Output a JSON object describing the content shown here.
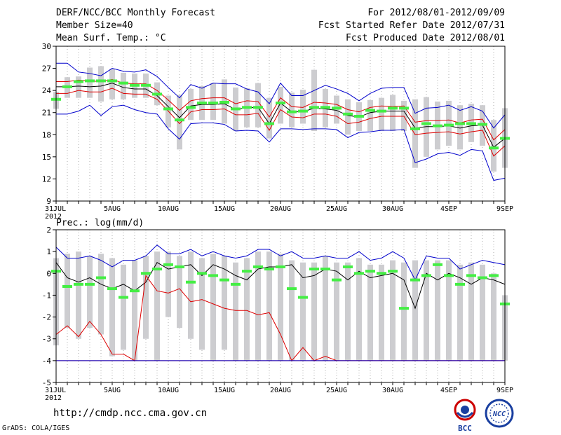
{
  "header": {
    "title": "DERF/NCC/BCC Monthly Forecast",
    "member_size": "Member Size=40",
    "variable": "Mean Surf. Temp.: °C",
    "period": "For 2012/08/01-2012/09/09",
    "fcst_started": "Fcst Started Refer Date 2012/07/31",
    "fcst_produced": "Fcst Produced Date 2012/08/01"
  },
  "footer": {
    "url": "http://cmdp.ncc.cma.gov.cn",
    "grads": "GrADS: COLA/IGES",
    "logo_left": "BCC",
    "logo_right": "NCC"
  },
  "colors": {
    "box": "#cdcdd0",
    "observed": "#44ee44",
    "max_line": "#0000cc",
    "spread_line": "#dd0000",
    "mean_line": "#000000"
  },
  "chart_data": [
    {
      "type": "line",
      "title": "Mean Surf. Temp.: °C",
      "ylabel": "",
      "ylim": [
        9,
        30
      ],
      "yticks": [
        9,
        12,
        15,
        18,
        21,
        24,
        27,
        30
      ],
      "xtick_labels": [
        "31JUL\n2012",
        "5AUG",
        "10AUG",
        "15AUG",
        "20AUG",
        "25AUG",
        "30AUG",
        "4SEP",
        "9SEP"
      ],
      "xtick_days": [
        0,
        5,
        10,
        15,
        20,
        25,
        30,
        35,
        40
      ],
      "series": [
        {
          "name": "max",
          "color": "#0000cc",
          "values": [
            27.7,
            27.7,
            26.5,
            26.3,
            26.0,
            27.0,
            26.6,
            26.5,
            26.8,
            25.9,
            24.4,
            23.0,
            24.8,
            24.3,
            25.0,
            24.9,
            24.9,
            24.2,
            23.8,
            22.2,
            25.0,
            23.3,
            23.3,
            24.0,
            24.7,
            24.2,
            23.6,
            22.6,
            23.6,
            24.3,
            24.4,
            24.4,
            20.9,
            21.6,
            21.7,
            22.0,
            21.3,
            21.8,
            21.2,
            18.9,
            20.7
          ]
        },
        {
          "name": "upper",
          "color": "#dd0000",
          "values": [
            25.2,
            25.2,
            25.4,
            25.3,
            25.2,
            25.5,
            25.0,
            24.9,
            24.9,
            24.0,
            22.7,
            21.3,
            22.6,
            22.9,
            23.0,
            23.0,
            22.2,
            22.6,
            22.5,
            20.4,
            23.0,
            21.8,
            21.7,
            22.4,
            22.3,
            22.1,
            21.4,
            21.1,
            21.7,
            21.9,
            21.8,
            21.9,
            19.7,
            19.9,
            19.9,
            20.0,
            19.6,
            20.0,
            20.1,
            17.3,
            18.7
          ]
        },
        {
          "name": "mean",
          "color": "#000000",
          "values": [
            24.5,
            24.5,
            24.6,
            24.5,
            24.6,
            25.0,
            24.4,
            24.2,
            24.2,
            23.3,
            21.8,
            20.3,
            21.9,
            22.1,
            22.1,
            22.2,
            21.4,
            21.7,
            21.7,
            19.5,
            22.3,
            21.1,
            21.1,
            21.6,
            21.5,
            21.3,
            20.6,
            20.4,
            21.0,
            21.2,
            21.2,
            21.2,
            18.9,
            19.1,
            19.1,
            19.2,
            18.9,
            19.2,
            19.3,
            16.3,
            17.5
          ]
        },
        {
          "name": "lower",
          "color": "#dd0000",
          "values": [
            23.6,
            23.6,
            24.0,
            23.8,
            23.8,
            24.3,
            23.6,
            23.5,
            23.5,
            22.8,
            21.2,
            19.5,
            21.1,
            21.4,
            21.4,
            21.5,
            20.7,
            20.7,
            20.9,
            18.6,
            21.4,
            20.4,
            20.3,
            20.8,
            20.8,
            20.5,
            19.5,
            19.7,
            20.2,
            20.5,
            20.5,
            20.5,
            18.0,
            18.2,
            18.3,
            18.4,
            18.1,
            18.4,
            18.6,
            15.1,
            16.5
          ]
        },
        {
          "name": "min",
          "color": "#0000cc",
          "values": [
            20.8,
            20.8,
            21.2,
            22.0,
            20.6,
            21.8,
            22.0,
            21.4,
            21.0,
            20.8,
            18.8,
            17.4,
            19.5,
            19.6,
            19.6,
            19.4,
            18.5,
            18.6,
            18.5,
            17.0,
            18.8,
            18.8,
            18.7,
            18.8,
            18.8,
            18.7,
            17.6,
            18.3,
            18.4,
            18.6,
            18.6,
            18.7,
            14.2,
            14.7,
            15.4,
            15.6,
            15.2,
            16.0,
            15.8,
            11.8,
            12.1
          ]
        }
      ],
      "box_high": [
        23.8,
        25.8,
        25.9,
        27.1,
        27.3,
        26.9,
        26.4,
        26.3,
        26.3,
        25.1,
        23.3,
        23.4,
        24.2,
        24.6,
        25.0,
        25.5,
        24.4,
        24.3,
        25.0,
        23.0,
        24.5,
        23.7,
        24.1,
        26.8,
        24.2,
        23.3,
        22.8,
        22.4,
        22.7,
        23.0,
        23.4,
        22.6,
        22.8,
        23.1,
        22.5,
        22.6,
        22.0,
        22.2,
        22.0,
        20.0,
        21.6
      ],
      "box_low": [
        21.5,
        23.0,
        23.0,
        23.0,
        22.5,
        22.8,
        22.8,
        23.0,
        23.0,
        22.0,
        19.0,
        16.0,
        20.0,
        20.0,
        20.0,
        19.5,
        18.5,
        19.0,
        19.0,
        17.5,
        19.5,
        19.0,
        19.5,
        18.5,
        19.0,
        19.5,
        18.0,
        18.5,
        18.5,
        18.5,
        18.5,
        18.5,
        13.5,
        15.0,
        16.0,
        16.5,
        16.0,
        17.0,
        16.5,
        13.0,
        13.5
      ],
      "observed": [
        22.8,
        24.5,
        25.2,
        25.3,
        25.3,
        25.3,
        25.0,
        24.7,
        24.7,
        23.5,
        21.5,
        20.0,
        21.7,
        22.3,
        22.3,
        22.4,
        21.5,
        21.7,
        21.7,
        19.5,
        22.3,
        21.1,
        21.2,
        21.7,
        21.7,
        21.6,
        20.8,
        20.5,
        21.3,
        21.2,
        21.6,
        21.6,
        18.8,
        19.5,
        19.2,
        19.3,
        19.5,
        19.5,
        19.4,
        16.2,
        17.5
      ]
    },
    {
      "type": "line",
      "title": "Prec.: log(mm/d)",
      "ylim": [
        -5,
        2
      ],
      "yticks": [
        -5,
        -4,
        -3,
        -2,
        -1,
        0,
        1,
        2
      ],
      "xtick_labels": [
        "31JUL\n2012",
        "5AUG",
        "10AUG",
        "15AUG",
        "20AUG",
        "25AUG",
        "30AUG",
        "4SEP",
        "9SEP"
      ],
      "xtick_days": [
        0,
        5,
        10,
        15,
        20,
        25,
        30,
        35,
        40
      ],
      "series": [
        {
          "name": "max",
          "color": "#0000cc",
          "values": [
            1.2,
            0.7,
            0.7,
            0.8,
            0.6,
            0.3,
            0.6,
            0.6,
            0.8,
            1.3,
            0.9,
            0.9,
            1.1,
            0.8,
            1.0,
            0.8,
            0.7,
            0.8,
            1.1,
            1.1,
            0.8,
            1.0,
            0.7,
            0.7,
            0.8,
            0.7,
            0.7,
            1.0,
            0.6,
            0.7,
            1.0,
            0.7,
            -0.3,
            0.8,
            0.7,
            0.7,
            0.2,
            0.4,
            0.6,
            0.5,
            0.4
          ]
        },
        {
          "name": "mean",
          "color": "#000000",
          "values": [
            0.5,
            -0.2,
            -0.4,
            -0.2,
            -0.5,
            -0.7,
            -0.5,
            -0.8,
            -0.4,
            0.5,
            0.2,
            0.3,
            0.4,
            -0.1,
            0.4,
            0.2,
            -0.1,
            -0.3,
            0.2,
            0.3,
            0.3,
            0.4,
            -0.2,
            -0.1,
            0.2,
            0.1,
            -0.3,
            0.1,
            -0.2,
            -0.1,
            0.0,
            -0.3,
            -1.6,
            0.0,
            -0.3,
            0.0,
            -0.2,
            -0.5,
            -0.2,
            -0.3,
            -0.5
          ]
        },
        {
          "name": "spread_lower",
          "color": "#dd0000",
          "values": [
            -2.8,
            -2.4,
            -2.9,
            -2.2,
            -2.8,
            -3.7,
            -3.7,
            -4.0,
            -4.0,
            -4.0,
            -4.0,
            -4.0,
            -4.0,
            -4.0,
            -4.0,
            -4.0,
            -4.0,
            -4.0,
            -4.0,
            -4.0,
            -4.0,
            -4.0,
            -4.0,
            -4.0,
            -4.0,
            -4.0,
            -4.0,
            -4.0,
            -4.0,
            -4.0,
            -4.0,
            -4.0,
            -4.0,
            -4.0,
            -4.0,
            -4.0,
            -4.0,
            -4.0,
            -4.0,
            -4.0,
            -4.0
          ]
        },
        {
          "name": "spread_upper",
          "color": "#dd0000",
          "values": [
            -4.0,
            -4.0,
            -4.0,
            -4.0,
            -4.0,
            -4.0,
            -4.0,
            -4.0,
            -0.1,
            -0.8,
            -0.9,
            -0.7,
            -1.3,
            -1.2,
            -1.4,
            -1.6,
            -1.7,
            -1.7,
            -1.9,
            -1.8,
            -2.8,
            -4.0,
            -3.4,
            -4.0,
            -3.8,
            -4.0,
            -4.0,
            -4.0,
            -4.0,
            -4.0,
            -4.0,
            -4.0,
            -4.0,
            -4.0,
            -4.0,
            -4.0,
            -4.0,
            -4.0,
            -4.0,
            -4.0,
            -4.0
          ]
        },
        {
          "name": "min",
          "color": "#0000cc",
          "values": [
            -4.0,
            -4.0,
            -4.0,
            -4.0,
            -4.0,
            -4.0,
            -4.0,
            -4.0,
            -4.0,
            -4.0,
            -4.0,
            -4.0,
            -4.0,
            -4.0,
            -4.0,
            -4.0,
            -4.0,
            -4.0,
            -4.0,
            -4.0,
            -4.0,
            -4.0,
            -4.0,
            -4.0,
            -4.0,
            -4.0,
            -4.0,
            -4.0,
            -4.0,
            -4.0,
            -4.0,
            -4.0,
            -4.0,
            -4.0,
            -4.0,
            -4.0,
            -4.0,
            -4.0,
            -4.0,
            -4.0,
            -4.0
          ]
        }
      ],
      "box_high": [
        0.7,
        0.9,
        1.0,
        0.8,
        0.9,
        0.7,
        0.4,
        0.6,
        0.8,
        1.0,
        1.0,
        0.8,
        1.0,
        0.7,
        0.9,
        0.8,
        0.5,
        0.7,
        1.0,
        1.0,
        0.9,
        0.6,
        0.5,
        0.5,
        0.8,
        0.5,
        0.5,
        0.7,
        0.4,
        0.4,
        0.6,
        0.5,
        0.6,
        0.6,
        0.6,
        0.6,
        0.4,
        0.5,
        0.4,
        0.0,
        -1.0
      ],
      "box_low": [
        -3.3,
        -2.5,
        -3.0,
        -2.5,
        -2.8,
        -3.8,
        -3.5,
        -4.0,
        -3.0,
        -4.0,
        -2.0,
        -2.5,
        -3.0,
        -3.5,
        -4.0,
        -3.5,
        -4.0,
        -4.0,
        -4.0,
        -4.0,
        -4.0,
        -4.0,
        -4.0,
        -4.0,
        -4.0,
        -4.0,
        -4.0,
        -4.0,
        -4.0,
        -4.0,
        -4.0,
        -4.0,
        -4.0,
        -4.0,
        -4.0,
        -4.0,
        -4.0,
        -4.0,
        -4.0,
        -4.0,
        -4.0
      ],
      "observed": [
        0.1,
        -0.6,
        -0.5,
        -0.5,
        -0.2,
        -0.7,
        -1.1,
        -0.8,
        0.0,
        0.2,
        0.4,
        0.3,
        -0.4,
        0.0,
        -0.1,
        -0.3,
        -0.5,
        0.1,
        0.3,
        0.2,
        0.3,
        -0.7,
        -1.1,
        0.2,
        0.2,
        -0.3,
        0.3,
        0.0,
        0.1,
        0.0,
        0.1,
        -1.6,
        -0.3,
        -0.1,
        0.4,
        -0.1,
        -0.5,
        -0.1,
        -0.2,
        -0.1,
        -1.4
      ]
    }
  ]
}
